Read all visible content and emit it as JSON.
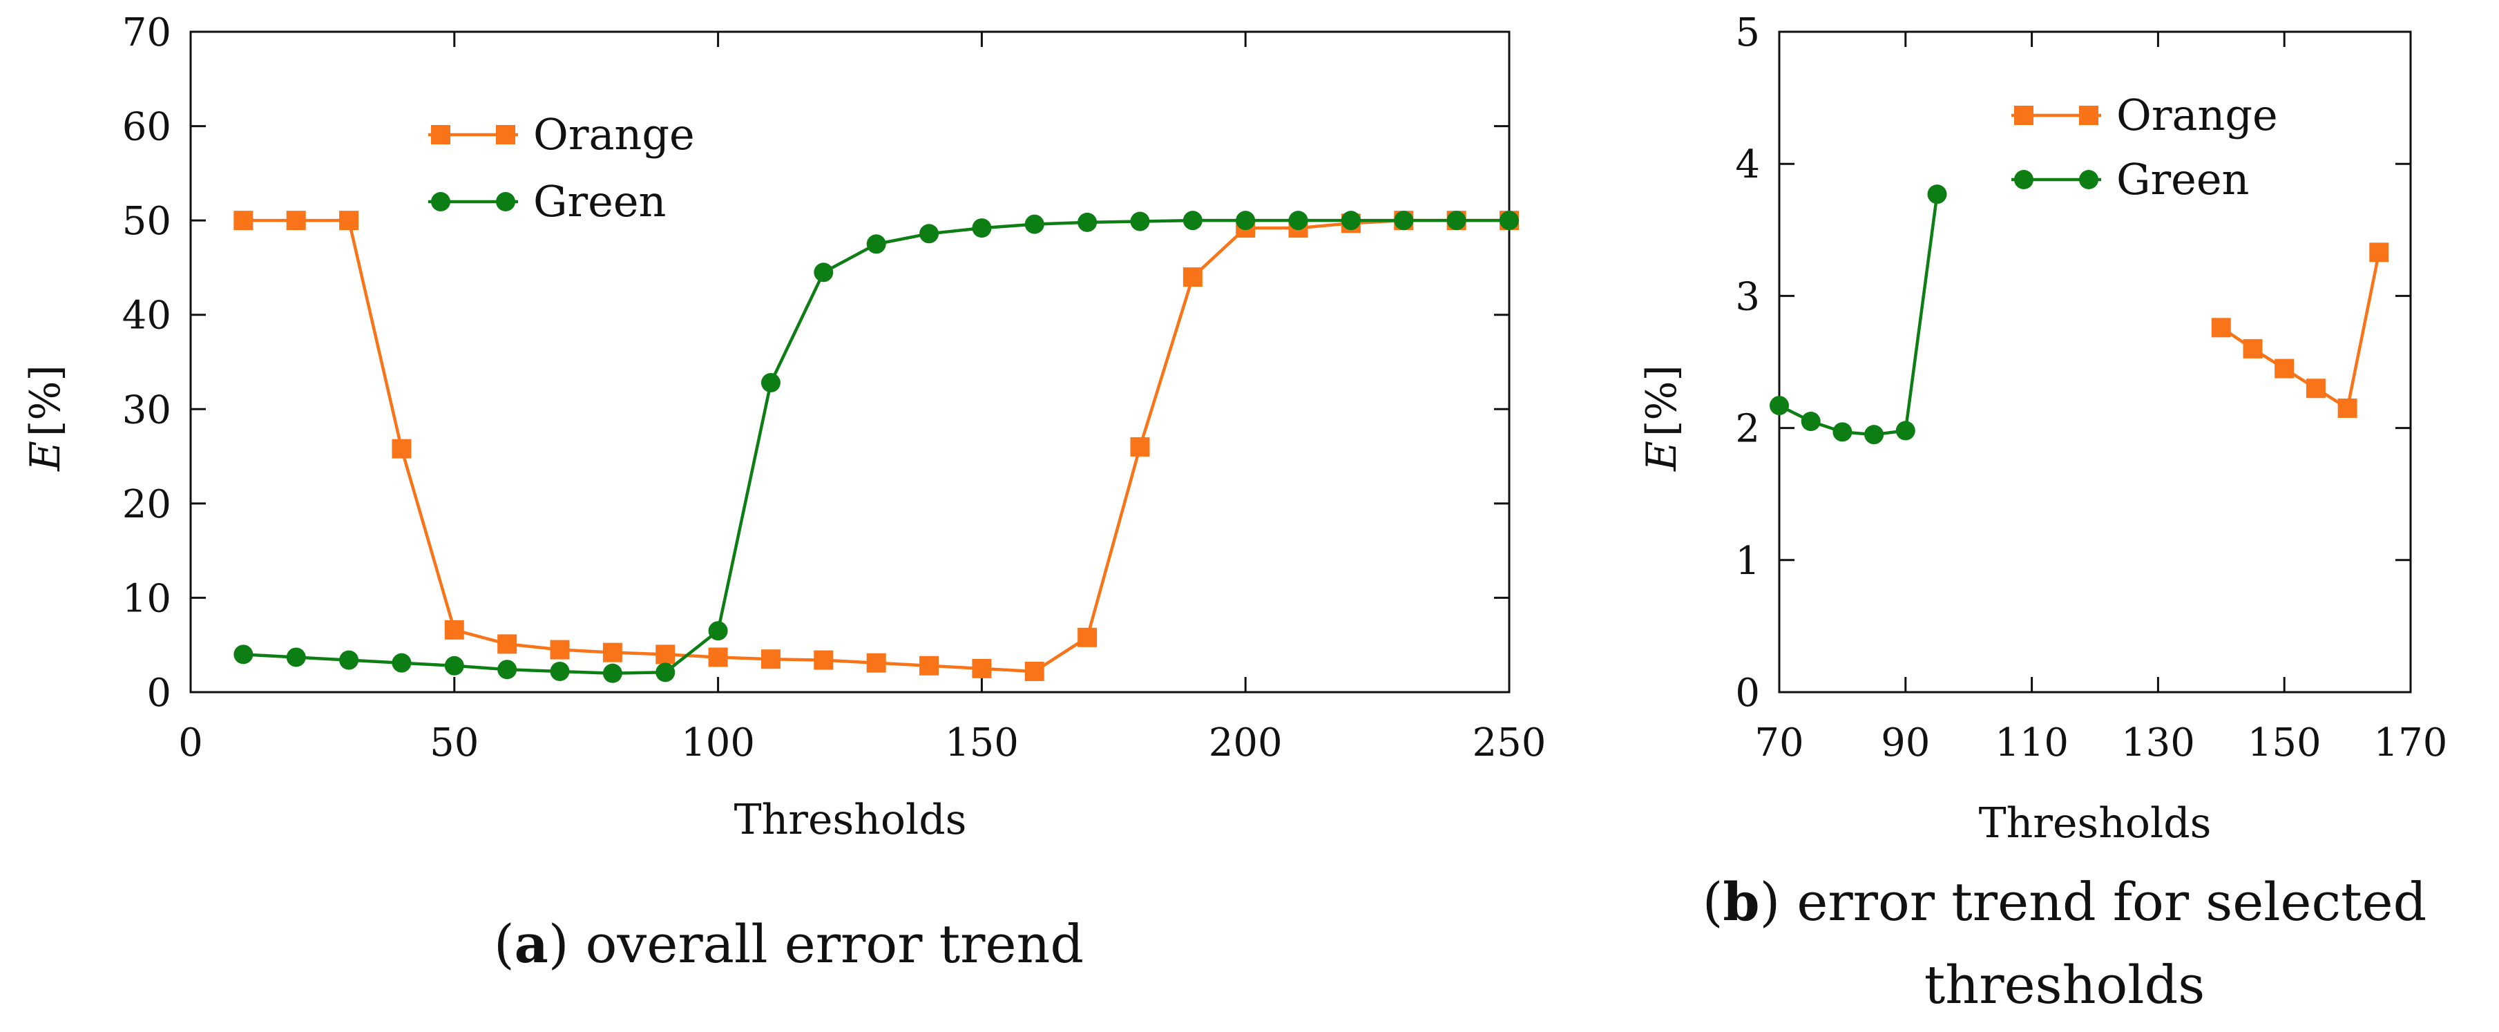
{
  "colors": {
    "orange": "#F97418",
    "green": "#0C7E14",
    "axis": "#111111",
    "background": "#FFFFFF"
  },
  "chart_data": [
    {
      "type": "line",
      "panel": "a",
      "caption_letter": "a",
      "caption_text": "overall error trend",
      "xlabel": "Thresholds",
      "ylabel": "E",
      "ylabel_unit": "[%]",
      "xlim": [
        0,
        250
      ],
      "ylim": [
        0,
        70
      ],
      "xticks": [
        0,
        50,
        100,
        150,
        200,
        250
      ],
      "yticks": [
        0,
        10,
        20,
        30,
        40,
        50,
        60,
        70
      ],
      "grid": false,
      "legend_position": "top-center",
      "series": [
        {
          "name": "Orange",
          "marker": "square",
          "color": "#F97418",
          "x": [
            10,
            20,
            30,
            40,
            50,
            60,
            70,
            80,
            90,
            100,
            110,
            120,
            130,
            140,
            150,
            160,
            170,
            180,
            190,
            200,
            210,
            220,
            230,
            240,
            250
          ],
          "y": [
            50,
            50,
            50,
            25.8,
            6.6,
            5.1,
            4.5,
            4.2,
            4.0,
            3.7,
            3.5,
            3.4,
            3.1,
            2.8,
            2.5,
            2.2,
            5.8,
            26.0,
            44.0,
            49.2,
            49.2,
            49.7,
            50,
            50,
            50
          ]
        },
        {
          "name": "Green",
          "marker": "circle",
          "color": "#0C7E14",
          "x": [
            10,
            20,
            30,
            40,
            50,
            60,
            70,
            80,
            90,
            100,
            110,
            120,
            130,
            140,
            150,
            160,
            170,
            180,
            190,
            200,
            210,
            220,
            230,
            240,
            250
          ],
          "y": [
            4.0,
            3.7,
            3.4,
            3.1,
            2.8,
            2.4,
            2.2,
            2.0,
            2.1,
            6.5,
            32.8,
            44.5,
            47.5,
            48.6,
            49.2,
            49.6,
            49.8,
            49.9,
            50,
            50,
            50,
            50,
            50,
            50,
            50
          ]
        }
      ]
    },
    {
      "type": "line",
      "panel": "b",
      "caption_letter": "b",
      "caption_text": "error trend for selected",
      "caption_text_line2": "thresholds",
      "xlabel": "Thresholds",
      "ylabel": "E",
      "ylabel_unit": "[%]",
      "xlim": [
        70,
        170
      ],
      "ylim": [
        0,
        5
      ],
      "xticks": [
        70,
        90,
        110,
        130,
        150,
        170
      ],
      "yticks": [
        0,
        1,
        2,
        3,
        4,
        5
      ],
      "grid": false,
      "legend_position": "top-center",
      "series": [
        {
          "name": "Orange",
          "marker": "square",
          "color": "#F97418",
          "x": [
            140,
            145,
            150,
            155,
            160,
            165
          ],
          "y": [
            2.76,
            2.6,
            2.45,
            2.3,
            2.15,
            3.33
          ]
        },
        {
          "name": "Green",
          "marker": "circle",
          "color": "#0C7E14",
          "x": [
            70,
            75,
            80,
            85,
            90,
            95
          ],
          "y": [
            2.17,
            2.05,
            1.97,
            1.95,
            1.98,
            3.77
          ]
        }
      ]
    }
  ]
}
